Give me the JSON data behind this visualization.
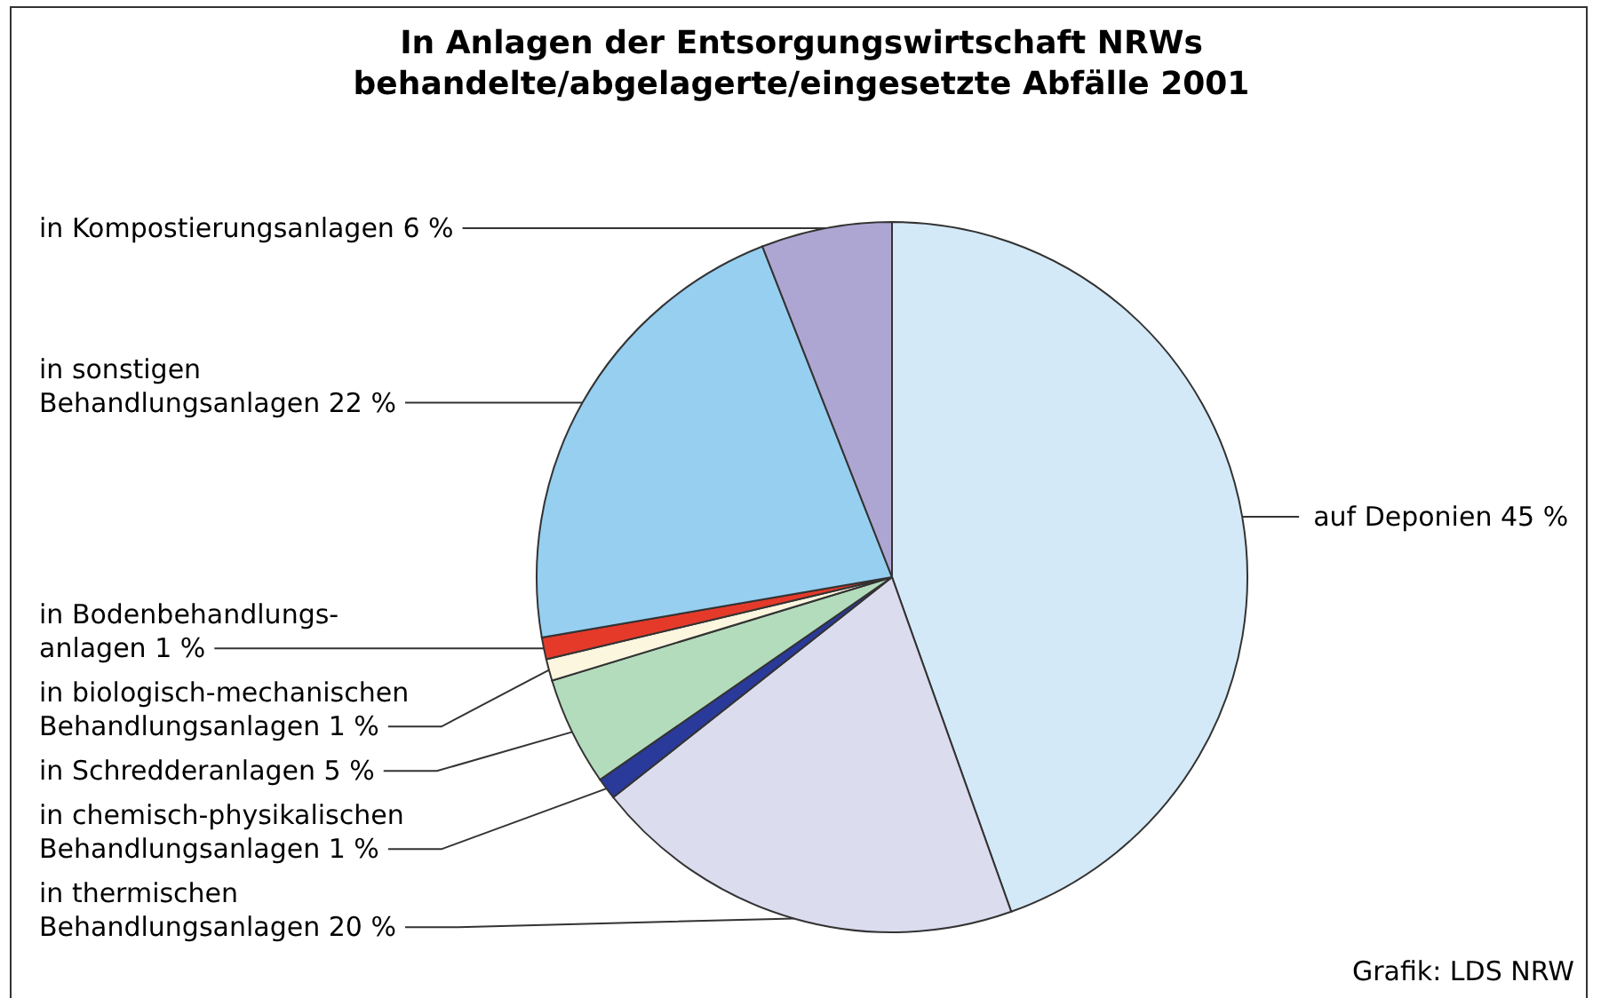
{
  "chart_data": {
    "type": "pie",
    "title": "In Anlagen der Entsorgungswirtschaft NRWs\nbehandelte/abgelagerte/eingesetzte Abfälle 2001",
    "categories": [
      "auf Deponien",
      "in thermischen\nBehandlungsanlagen",
      "in chemisch-physikalischen\nBehandlungsanlagen",
      "in Schredderanlagen",
      "in biologisch-mechanischen\nBehandlungsanlagen",
      "in Bodenbehandlungs-\nanlagen",
      "in sonstigen\nBehandlungsanlagen",
      "in Kompostierungsanlagen"
    ],
    "values": [
      45,
      20,
      1,
      5,
      1,
      1,
      22,
      6
    ],
    "value_labels": [
      "45 %",
      "20 %",
      "1 %",
      "5 %",
      "1 %",
      "1 %",
      "22 %",
      "6 %"
    ],
    "colors": [
      "#d4e9f7",
      "#dcdcef",
      "#2a3a9a",
      "#b3dcbd",
      "#fdf6df",
      "#e53a2a",
      "#96cff0",
      "#aea6d2"
    ],
    "annotations": [
      "Grafik: LDS NRW"
    ]
  }
}
